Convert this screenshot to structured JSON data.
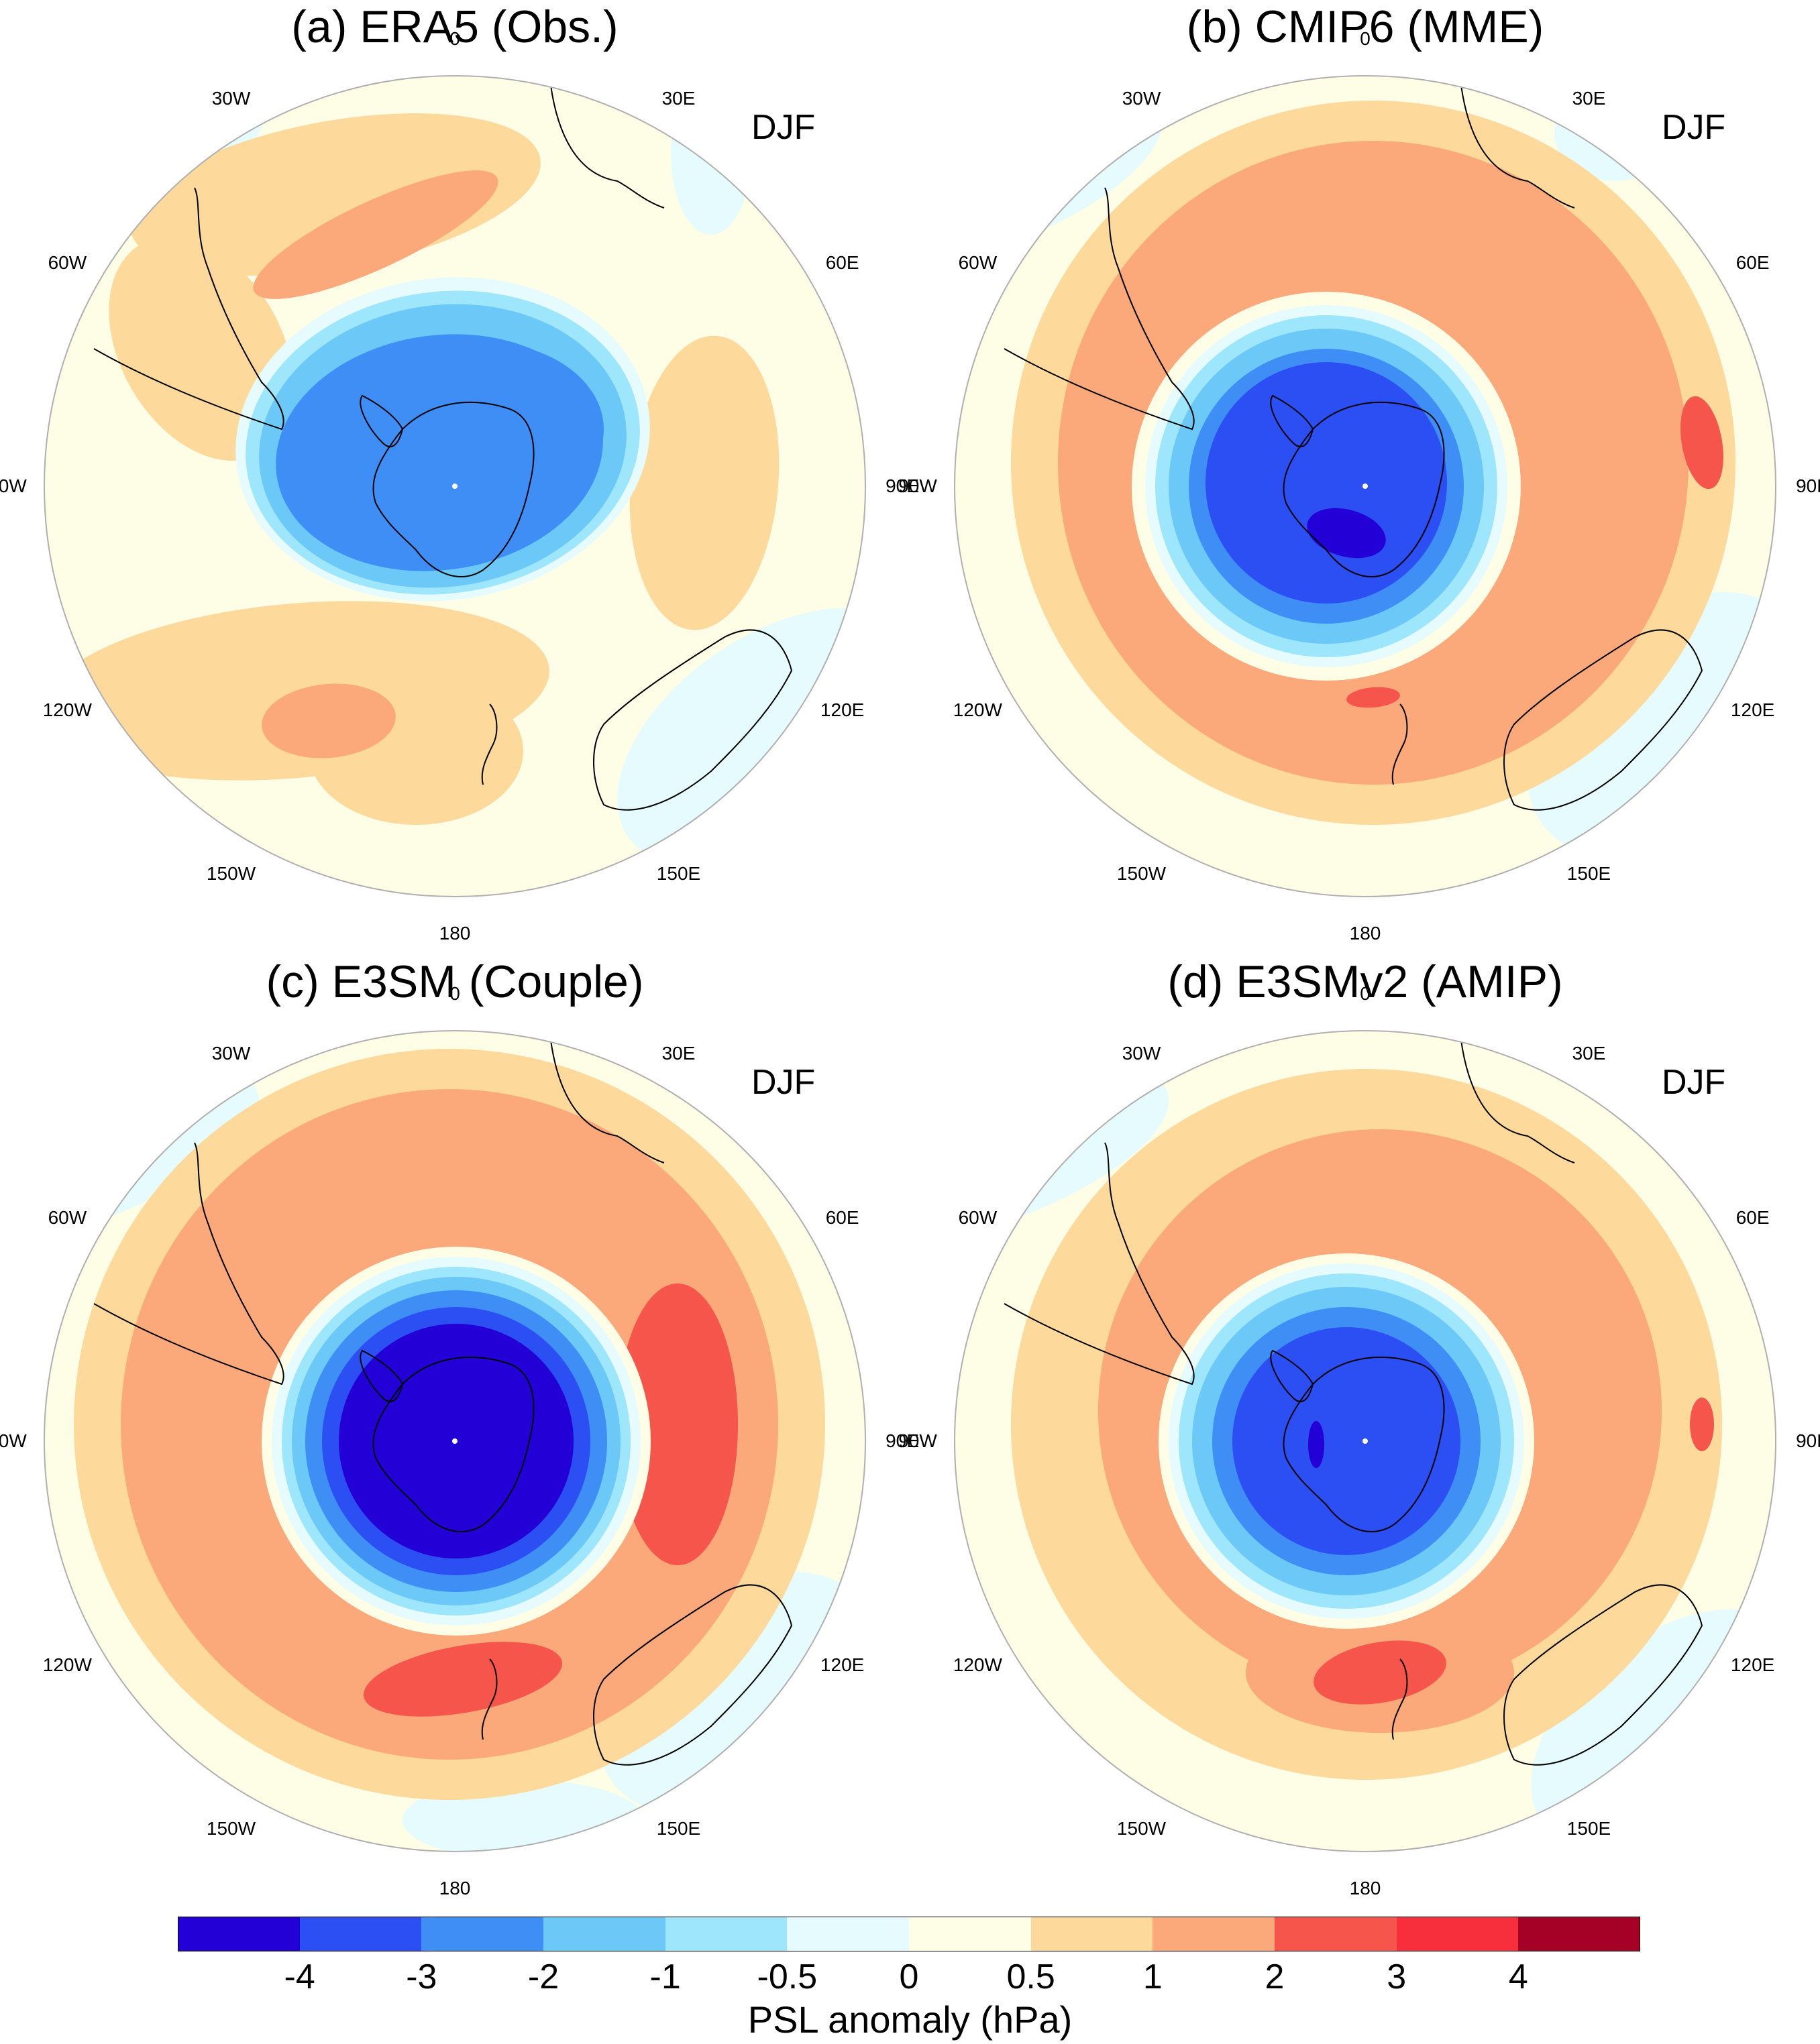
{
  "season_label": "DJF",
  "longitude_labels": [
    "0",
    "30E",
    "60E",
    "90E",
    "120E",
    "150E",
    "180",
    "150W",
    "120W",
    "90W",
    "60W",
    "30W"
  ],
  "panels": [
    {
      "id": "a",
      "title": "(a) ERA5 (Obs.)"
    },
    {
      "id": "b",
      "title": "(b) CMIP6 (MME)"
    },
    {
      "id": "c",
      "title": "(c) E3SM (Couple)"
    },
    {
      "id": "d",
      "title": "(d) E3SMv2 (AMIP)"
    }
  ],
  "colorbar": {
    "title": "PSL anomaly (hPa)",
    "ticks": [
      "-4",
      "-3",
      "-2",
      "-1",
      "-0.5",
      "0",
      "0.5",
      "1",
      "2",
      "3",
      "4"
    ],
    "colors": [
      "#2300d6",
      "#2b4ff2",
      "#3f8ef6",
      "#6cc8f6",
      "#9ee6fc",
      "#e6fbfd",
      "#fefde6",
      "#fdd99c",
      "#fba97a",
      "#f5554a",
      "#f72f3c",
      "#a50026"
    ]
  }
}
